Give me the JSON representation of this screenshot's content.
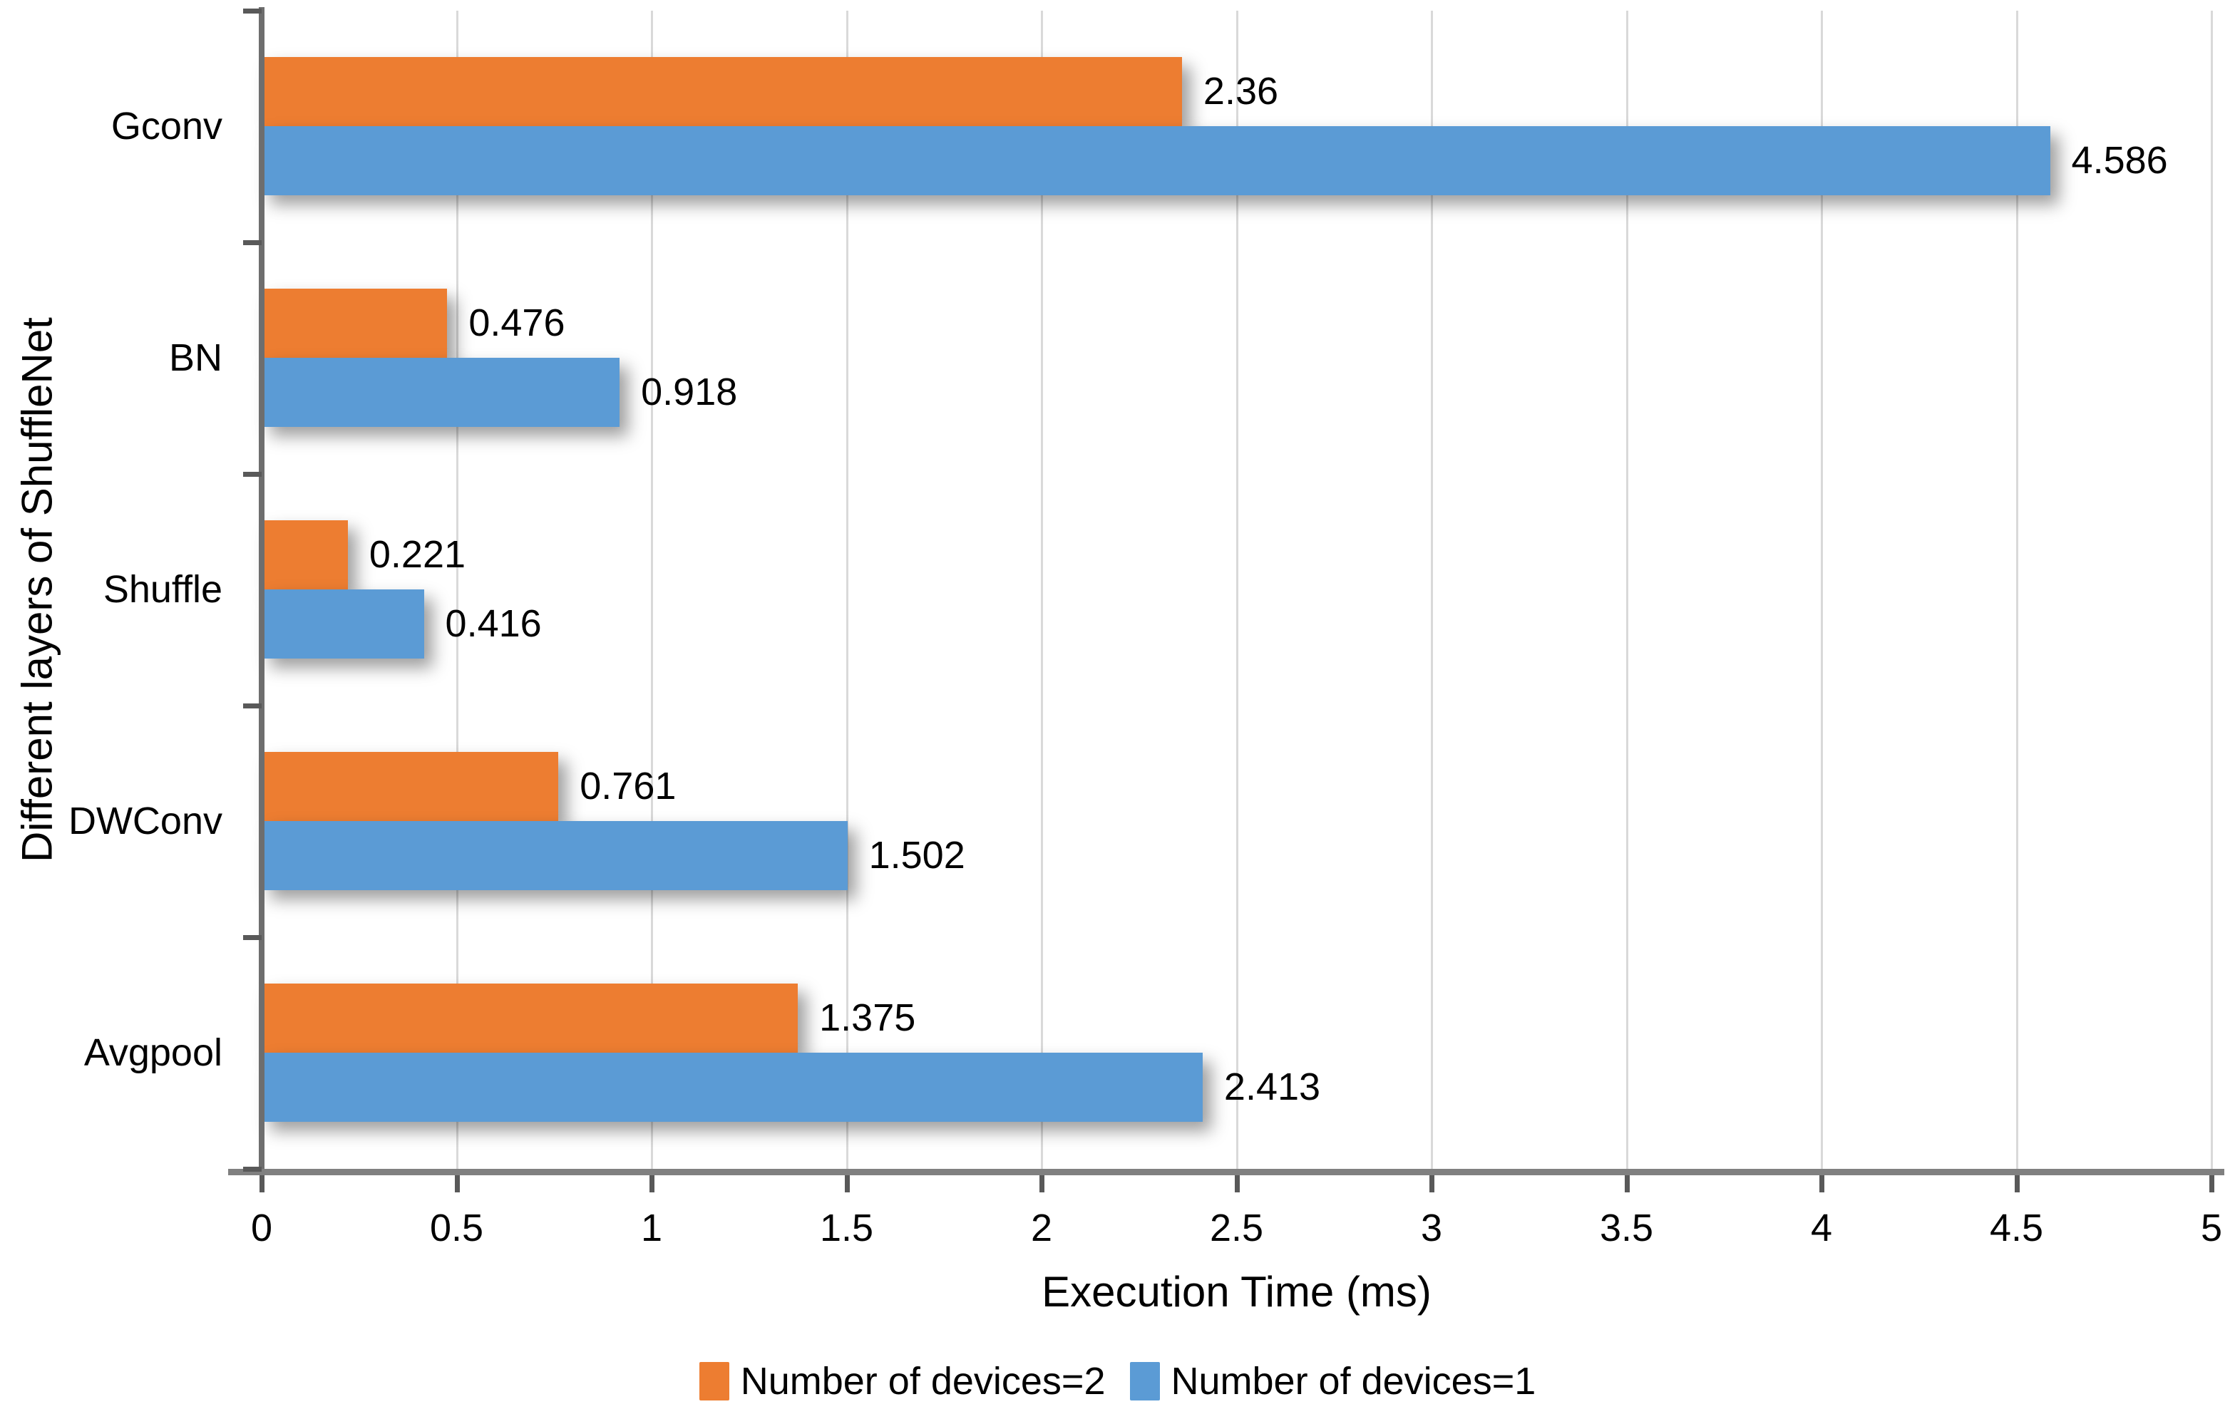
{
  "chart_data": {
    "type": "bar",
    "orientation": "horizontal",
    "title": "",
    "xlabel": "Execution Time (ms)",
    "ylabel": "Different layers of ShuffleNet",
    "categories": [
      "Gconv",
      "BN",
      "Shuffle",
      "DWConv",
      "Avgpool"
    ],
    "series": [
      {
        "name": "Number of devices=2",
        "color": "#ED7D31",
        "values": [
          2.36,
          0.476,
          0.221,
          0.761,
          1.375
        ],
        "labels": [
          "2.36",
          "0.476",
          "0.221",
          "0.761",
          "1.375"
        ]
      },
      {
        "name": "Number of devices=1",
        "color": "#5B9BD5",
        "values": [
          4.586,
          0.918,
          0.416,
          1.502,
          2.413
        ],
        "labels": [
          "4.586",
          "0.918",
          "0.416",
          "1.502",
          "2.413"
        ]
      }
    ],
    "xlim": [
      0,
      5
    ],
    "xtick_step": 0.5,
    "xtick_labels": [
      "0",
      "0.5",
      "1",
      "1.5",
      "2",
      "2.5",
      "3",
      "3.5",
      "4",
      "4.5",
      "5"
    ],
    "grid": true,
    "legend_position": "bottom",
    "style": {
      "gridline_color": "#D9D9D9",
      "axis_line_color": "#808080",
      "tick_color": "#595959",
      "text_color": "#000000",
      "background": "#FFFFFF"
    }
  }
}
